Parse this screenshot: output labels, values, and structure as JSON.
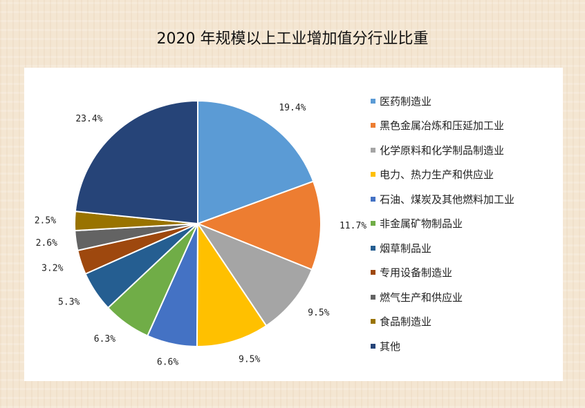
{
  "chart_data": {
    "type": "pie",
    "title": "2020 年规模以上工业增加值分行业比重",
    "legend_position": "right",
    "series": [
      {
        "name": "医药制造业",
        "value": 19.4,
        "label": "19.4%",
        "color": "#5b9bd5"
      },
      {
        "name": "黑色金属冶炼和压延加工业",
        "value": 11.7,
        "label": "11.7%",
        "color": "#ed7d31"
      },
      {
        "name": "化学原料和化学制品制造业",
        "value": 9.5,
        "label": "9.5%",
        "color": "#a5a5a5"
      },
      {
        "name": "电力、热力生产和供应业",
        "value": 9.5,
        "label": "9.5%",
        "color": "#ffc000"
      },
      {
        "name": "石油、煤炭及其他燃料加工业",
        "value": 6.6,
        "label": "6.6%",
        "color": "#4472c4"
      },
      {
        "name": "非金属矿物制品业",
        "value": 6.3,
        "label": "6.3%",
        "color": "#70ad47"
      },
      {
        "name": "烟草制品业",
        "value": 5.3,
        "label": "5.3%",
        "color": "#255e91"
      },
      {
        "name": "专用设备制造业",
        "value": 3.2,
        "label": "3.2%",
        "color": "#9e480e"
      },
      {
        "name": "燃气生产和供应业",
        "value": 2.6,
        "label": "2.6%",
        "color": "#636363"
      },
      {
        "name": "食品制造业",
        "value": 2.5,
        "label": "2.5%",
        "color": "#997300"
      },
      {
        "name": "其他",
        "value": 23.4,
        "label": "23.4%",
        "color": "#264478"
      }
    ]
  }
}
